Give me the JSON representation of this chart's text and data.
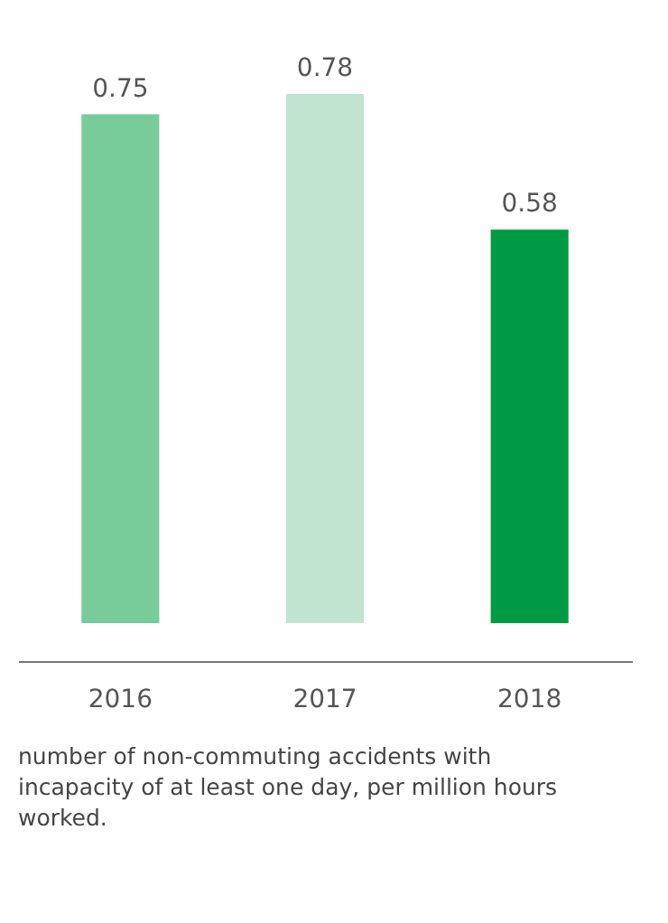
{
  "chart_data": {
    "type": "bar",
    "categories": [
      "2016",
      "2017",
      "2018"
    ],
    "values": [
      0.75,
      0.78,
      0.58
    ],
    "colors": [
      "#77cc99",
      "#c1e4d1",
      "#009a44"
    ],
    "data_labels": true,
    "annotations": [
      "number of non-commuting accidents with incapacity of at least one day, per million hours worked."
    ]
  }
}
